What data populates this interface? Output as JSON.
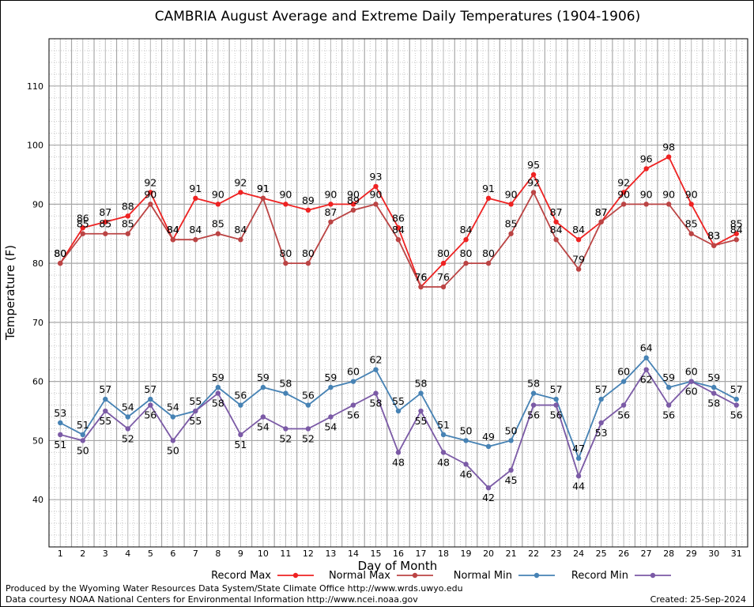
{
  "chart_data": {
    "type": "line",
    "title": "CAMBRIA August Average and Extreme Daily Temperatures (1904-1906)",
    "xlabel": "Day of Month",
    "ylabel": "Temperature (F)",
    "xlim": [
      0.5,
      31.5
    ],
    "ylim": [
      32,
      118
    ],
    "yticks": [
      40,
      50,
      60,
      70,
      80,
      90,
      100,
      110
    ],
    "grid": true,
    "legend_position": "bottom",
    "x": [
      1,
      2,
      3,
      4,
      5,
      6,
      7,
      8,
      9,
      10,
      11,
      12,
      13,
      14,
      15,
      16,
      17,
      18,
      19,
      20,
      21,
      22,
      23,
      24,
      25,
      26,
      27,
      28,
      29,
      30,
      31
    ],
    "series": [
      {
        "name": "Record Max",
        "color": "#ee2222",
        "label_pos": "above",
        "values": [
          80,
          86,
          87,
          88,
          92,
          84,
          91,
          90,
          92,
          91,
          90,
          89,
          90,
          90,
          93,
          86,
          76,
          80,
          84,
          91,
          90,
          95,
          87,
          84,
          87,
          92,
          96,
          98,
          90,
          83,
          85
        ]
      },
      {
        "name": "Normal Max",
        "color": "#bb4444",
        "label_pos": "above",
        "values": [
          80,
          85,
          85,
          85,
          90,
          84,
          84,
          85,
          84,
          91,
          80,
          80,
          87,
          89,
          90,
          84,
          76,
          76,
          80,
          80,
          85,
          92,
          84,
          79,
          87,
          90,
          90,
          90,
          85,
          83,
          84
        ]
      },
      {
        "name": "Normal Min",
        "color": "#4682b4",
        "label_pos": "above",
        "values": [
          53,
          51,
          57,
          54,
          57,
          54,
          55,
          59,
          56,
          59,
          58,
          56,
          59,
          60,
          62,
          55,
          58,
          51,
          50,
          49,
          50,
          58,
          57,
          47,
          57,
          60,
          64,
          59,
          60,
          59,
          57
        ]
      },
      {
        "name": "Record Min",
        "color": "#7b5aa6",
        "label_pos": "below",
        "values": [
          51,
          50,
          55,
          52,
          56,
          50,
          55,
          58,
          51,
          54,
          52,
          52,
          54,
          56,
          58,
          48,
          55,
          48,
          46,
          42,
          45,
          56,
          56,
          44,
          53,
          56,
          62,
          56,
          60,
          58,
          56
        ]
      }
    ]
  },
  "footer": {
    "produced_by": "Produced by the Wyoming Water Resources Data System/State Climate Office http://www.wrds.uwyo.edu",
    "data_courtesy": "Data courtesy NOAA National Centers for Environmental Information http://www.ncei.noaa.gov",
    "created": "Created: 25-Sep-2024"
  }
}
